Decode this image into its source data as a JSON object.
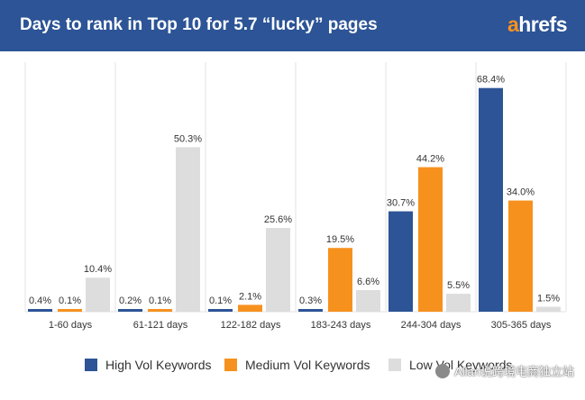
{
  "header": {
    "title": "Days to rank in Top 10 for 5.7 “lucky” pages",
    "logo_accent": "a",
    "logo_rest": "hrefs"
  },
  "colors": {
    "header_bg": "#2c5496",
    "high": "#2c5496",
    "medium": "#f7911e",
    "low": "#dddddd",
    "grid": "#e3e3e3"
  },
  "chart_data": {
    "type": "bar",
    "title": "Days to rank in Top 10 for 5.7 “lucky” pages",
    "xlabel": "",
    "ylabel": "",
    "ylim": [
      0,
      70
    ],
    "grid": "vertical separators only",
    "legend_position": "bottom",
    "categories": [
      "1-60 days",
      "61-121 days",
      "122-182 days",
      "183-243 days",
      "244-304 days",
      "305-365 days"
    ],
    "series": [
      {
        "name": "High Vol Keywords",
        "color": "#2c5496",
        "values": [
          0.4,
          0.2,
          0.1,
          0.3,
          30.7,
          68.4
        ],
        "labels": [
          "0.4%",
          "0.2%",
          "0.1%",
          "0.3%",
          "30.7%",
          "68.4%"
        ]
      },
      {
        "name": "Medium Vol Keywords",
        "color": "#f7911e",
        "values": [
          0.1,
          0.1,
          2.1,
          19.5,
          44.2,
          34.0
        ],
        "labels": [
          "0.1%",
          "0.1%",
          "2.1%",
          "19.5%",
          "44.2%",
          "34.0%"
        ]
      },
      {
        "name": "Low Vol Keywords",
        "color": "#dddddd",
        "values": [
          10.4,
          50.3,
          25.6,
          6.6,
          5.5,
          1.5
        ],
        "labels": [
          "10.4%",
          "50.3%",
          "25.6%",
          "6.6%",
          "5.5%",
          "1.5%"
        ]
      }
    ]
  },
  "watermark": {
    "text": "Allan说跨境电商独立站"
  }
}
